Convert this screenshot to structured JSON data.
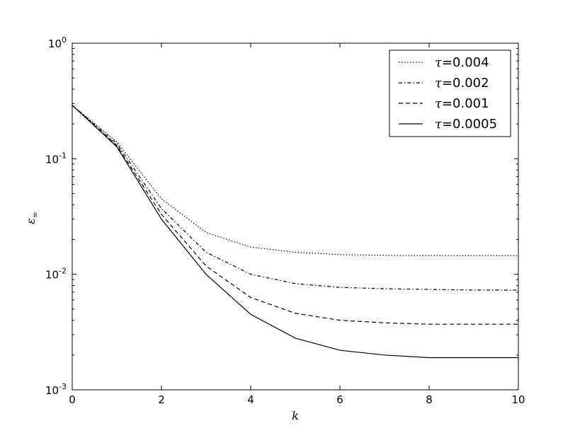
{
  "chart_data": {
    "type": "line",
    "xlabel": "k",
    "ylabel": "ε∞",
    "ylabel_main": "ε",
    "ylabel_sub": "∞",
    "xscale": "linear",
    "yscale": "log",
    "xlim": [
      0,
      10
    ],
    "ylim": [
      0.001,
      1
    ],
    "x_ticks": [
      0,
      2,
      4,
      6,
      8,
      10
    ],
    "x_tick_labels": [
      "0",
      "2",
      "4",
      "6",
      "8",
      "10"
    ],
    "y_ticks": [
      0.001,
      0.01,
      0.1,
      1
    ],
    "y_tick_labels": [
      {
        "base": "10",
        "exp": "-3"
      },
      {
        "base": "10",
        "exp": "-2"
      },
      {
        "base": "10",
        "exp": "-1"
      },
      {
        "base": "10",
        "exp": "0"
      }
    ],
    "grid": false,
    "legend_position": "top-right",
    "x": [
      0,
      1,
      2,
      3,
      4,
      5,
      6,
      7,
      8,
      9,
      10
    ],
    "series": [
      {
        "name": "τ=0.004",
        "name_tau": "τ",
        "name_value": "=0.004",
        "style": "dotted",
        "values": [
          0.29,
          0.14,
          0.045,
          0.023,
          0.0172,
          0.0155,
          0.0148,
          0.0146,
          0.0145,
          0.0145,
          0.0145
        ]
      },
      {
        "name": "τ=0.002",
        "name_tau": "τ",
        "name_value": "=0.002",
        "style": "dashdot",
        "values": [
          0.29,
          0.135,
          0.037,
          0.0155,
          0.01,
          0.0083,
          0.0077,
          0.0075,
          0.0074,
          0.0073,
          0.0073
        ]
      },
      {
        "name": "τ=0.001",
        "name_tau": "τ",
        "name_value": "=0.001",
        "style": "dashed",
        "values": [
          0.29,
          0.13,
          0.033,
          0.0118,
          0.0063,
          0.0046,
          0.004,
          0.0038,
          0.0037,
          0.0037,
          0.0037
        ]
      },
      {
        "name": "τ=0.0005",
        "name_tau": "τ",
        "name_value": "=0.0005",
        "style": "solid",
        "values": [
          0.29,
          0.127,
          0.03,
          0.01,
          0.0045,
          0.0028,
          0.0022,
          0.002,
          0.0019,
          0.0019,
          0.0019
        ]
      }
    ]
  }
}
